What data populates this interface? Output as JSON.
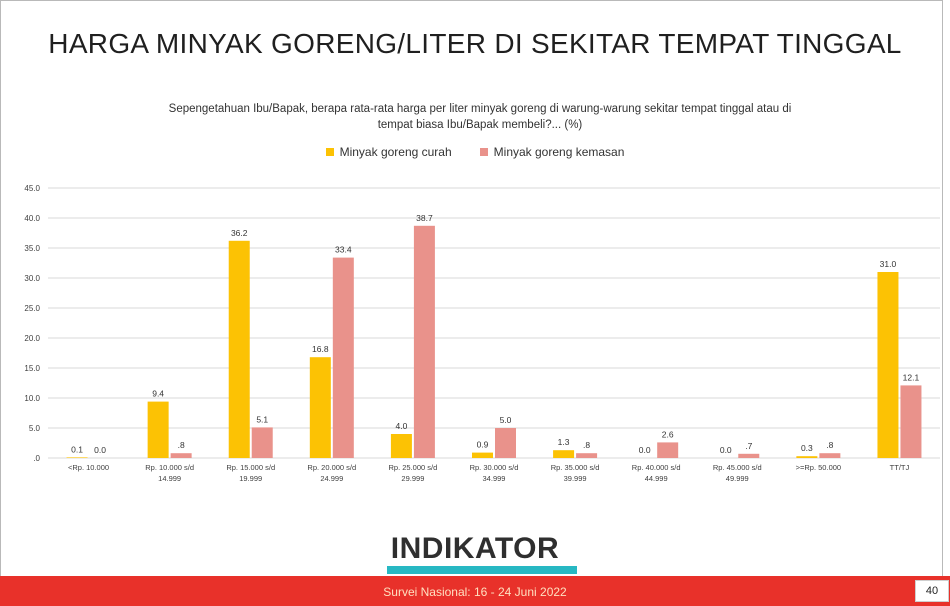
{
  "page": {
    "title": "HARGA MINYAK GORENG/LITER DI SEKITAR TEMPAT TINGGAL",
    "subtitle_line1": "Sepengetahuan Ibu/Bapak, berapa rata-rata harga per liter minyak goreng di warung-warung sekitar tempat tinggal atau di",
    "subtitle_line2": "tempat biasa Ibu/Bapak membeli?... (%)",
    "logo_text": "INDIKATOR",
    "footer_text": "Survei Nasional: 16 - 24 Juni 2022",
    "page_number": "40"
  },
  "colors": {
    "curah": "#fcc204",
    "kemasan": "#e9928b",
    "grid": "#d9d9d9",
    "axis_text": "#404040"
  },
  "chart_data": {
    "type": "bar",
    "title": "HARGA MINYAK GORENG/LITER DI SEKITAR TEMPAT TINGGAL",
    "xlabel": "",
    "ylabel": "",
    "ylim": [
      0,
      45
    ],
    "grid": true,
    "legend_position": "top",
    "yticks": [
      ".0",
      "5.0",
      "10.0",
      "15.0",
      "20.0",
      "25.0",
      "30.0",
      "35.0",
      "40.0",
      "45.0"
    ],
    "categories": [
      [
        "<Rp. 10.000"
      ],
      [
        "Rp. 10.000 s/d",
        "14.999"
      ],
      [
        "Rp. 15.000 s/d",
        "19.999"
      ],
      [
        "Rp. 20.000 s/d",
        "24.999"
      ],
      [
        "Rp. 25.000 s/d",
        "29.999"
      ],
      [
        "Rp. 30.000 s/d",
        "34.999"
      ],
      [
        "Rp. 35.000 s/d",
        "39.999"
      ],
      [
        "Rp. 40.000 s/d",
        "44.999"
      ],
      [
        "Rp. 45.000 s/d",
        "49.999"
      ],
      [
        ">=Rp. 50.000"
      ],
      [
        "TT/TJ"
      ]
    ],
    "series": [
      {
        "name": "Minyak goreng curah",
        "values": [
          0.1,
          9.4,
          36.2,
          16.8,
          4.0,
          0.9,
          1.3,
          0.0,
          0.0,
          0.3,
          31.0
        ],
        "labels": [
          "0.1",
          "9.4",
          "36.2",
          "16.8",
          "4.0",
          "0.9",
          "1.3",
          "0.0",
          "0.0",
          "0.3",
          "31.0"
        ]
      },
      {
        "name": "Minyak goreng kemasan",
        "values": [
          0.0,
          0.8,
          5.1,
          33.4,
          38.7,
          5.0,
          0.8,
          2.6,
          0.7,
          0.8,
          12.1
        ],
        "labels": [
          "0.0",
          ".8",
          "5.1",
          "33.4",
          "38.7",
          "5.0",
          ".8",
          "2.6",
          ".7",
          ".8",
          "12.1"
        ]
      }
    ]
  }
}
